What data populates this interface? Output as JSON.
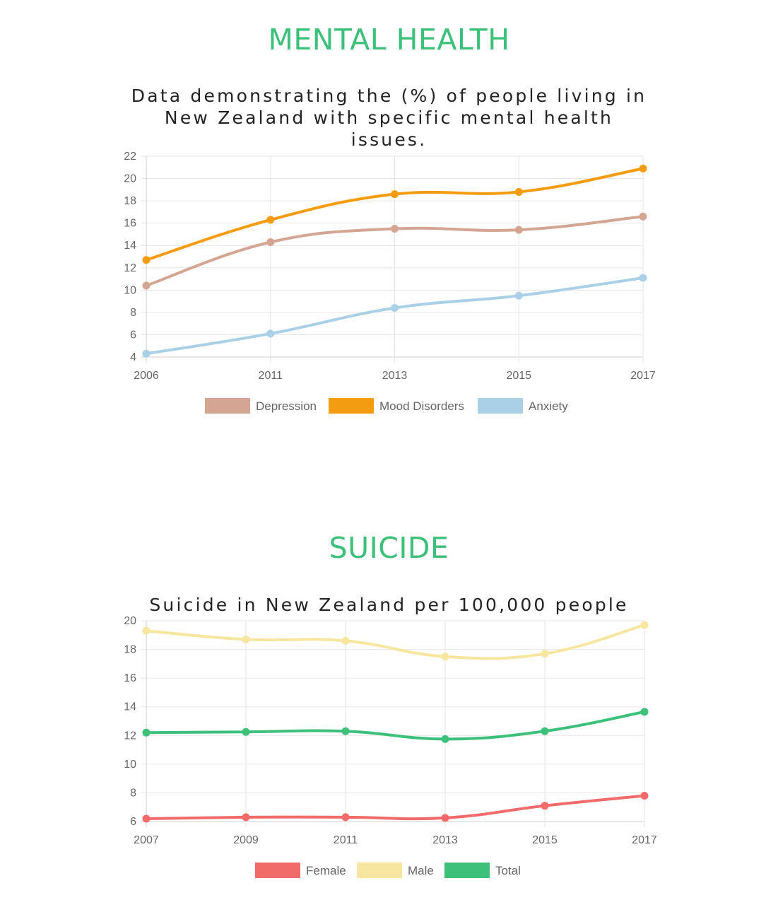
{
  "sections": [
    {
      "heading": "MENTAL HEALTH",
      "chart_title_lines": [
        "Data demonstrating the (%) of people living in",
        "New Zealand with specific mental health",
        "issues."
      ]
    },
    {
      "heading": "SUICIDE",
      "chart_title_lines": [
        "Suicide in New Zealand per 100,000 people"
      ]
    }
  ],
  "chart_data": [
    {
      "type": "line",
      "title": "Data demonstrating the (%) of people living in New Zealand with specific mental health issues.",
      "categories": [
        "2006",
        "2011",
        "2013",
        "2015",
        "2017"
      ],
      "ylim": [
        4,
        22
      ],
      "yticks": [
        4,
        6,
        8,
        10,
        12,
        14,
        16,
        18,
        20,
        22
      ],
      "grid": true,
      "legend": "bottom",
      "series": [
        {
          "name": "Depression",
          "color": "#d4a592",
          "values": [
            10.4,
            14.3,
            15.5,
            15.4,
            16.6
          ]
        },
        {
          "name": "Mood Disorders",
          "color": "#f39c12",
          "values": [
            12.7,
            16.3,
            18.6,
            18.8,
            20.9
          ]
        },
        {
          "name": "Anxiety",
          "color": "#a9d0e6",
          "values": [
            4.3,
            6.1,
            8.4,
            9.5,
            11.1
          ]
        }
      ]
    },
    {
      "type": "line",
      "title": "Suicide in New Zealand per 100,000 people",
      "categories": [
        "2007",
        "2009",
        "2011",
        "2013",
        "2015",
        "2017"
      ],
      "ylim": [
        6,
        20
      ],
      "yticks": [
        6,
        8,
        10,
        12,
        14,
        16,
        18,
        20
      ],
      "grid": true,
      "legend": "bottom",
      "series": [
        {
          "name": "Female",
          "color": "#f26b6b",
          "values": [
            6.2,
            6.3,
            6.3,
            6.25,
            7.1,
            7.8
          ]
        },
        {
          "name": "Male",
          "color": "#f7e6a0",
          "values": [
            19.3,
            18.7,
            18.6,
            17.5,
            17.7,
            19.7
          ]
        },
        {
          "name": "Total",
          "color": "#3cc07a",
          "values": [
            12.2,
            12.25,
            12.3,
            11.75,
            12.3,
            13.65
          ]
        }
      ]
    }
  ]
}
